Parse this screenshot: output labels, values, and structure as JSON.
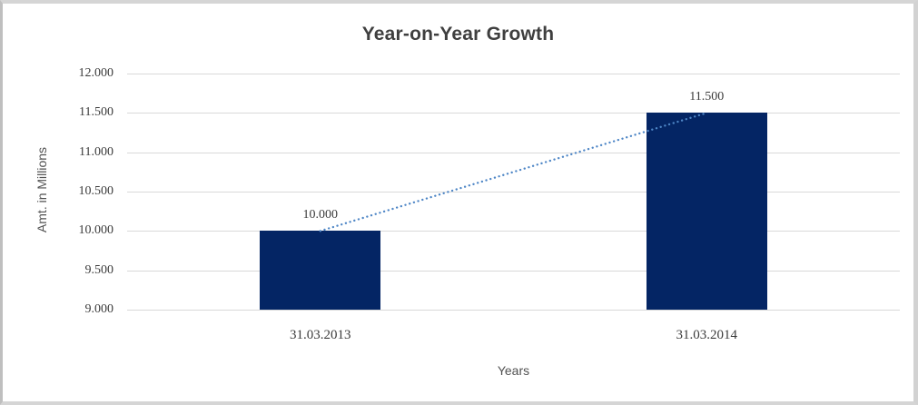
{
  "chart_data": {
    "type": "bar",
    "title": "Year-on-Year Growth",
    "xlabel": "Years",
    "ylabel": "Amt. in Millions",
    "categories": [
      "31.03.2013",
      "31.03.2014"
    ],
    "values": [
      10.0,
      11.5
    ],
    "value_labels": [
      "10.000",
      "11.500"
    ],
    "ylim": [
      9.0,
      12.0
    ],
    "yticks": [
      {
        "value": 12.0,
        "label": "12.000"
      },
      {
        "value": 11.5,
        "label": "11.500"
      },
      {
        "value": 11.0,
        "label": "11.000"
      },
      {
        "value": 10.5,
        "label": "10.500"
      },
      {
        "value": 10.0,
        "label": "10.000"
      },
      {
        "value": 9.5,
        "label": "9.500"
      },
      {
        "value": 9.0,
        "label": "9.000"
      }
    ],
    "grid": true,
    "legend_position": "none",
    "colors": {
      "bar": "#042564",
      "trendline": "#4e86c6",
      "gridline": "#d9d9d9",
      "title_text": "#3f3f3f",
      "tick_text": "#3b3b3b",
      "axis_title_text": "#515151"
    },
    "trendline": {
      "style": "dotted",
      "connects": "bar-tops"
    }
  }
}
